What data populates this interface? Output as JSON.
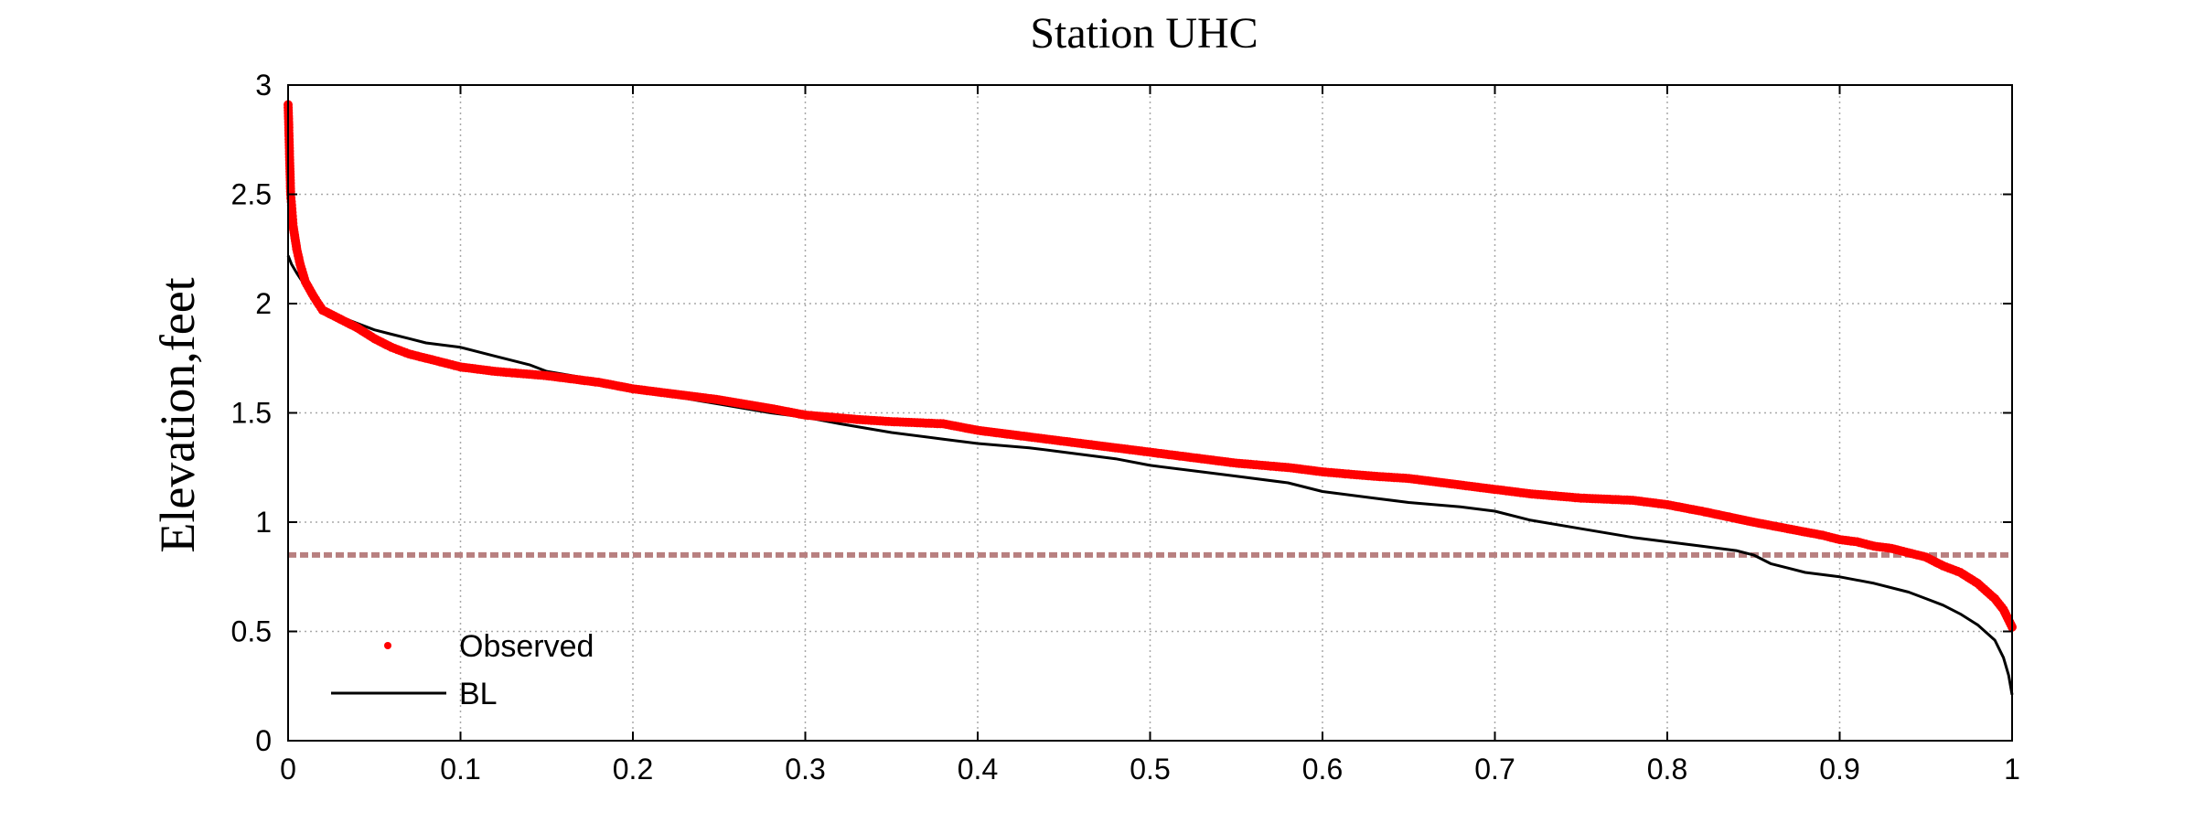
{
  "chart_data": {
    "type": "line",
    "title": "Station UHC",
    "xlabel": "",
    "ylabel": "Elevation,feet",
    "xlim": [
      0,
      1
    ],
    "ylim": [
      0,
      3
    ],
    "xticks": [
      "0",
      "0.1",
      "0.2",
      "0.3",
      "0.4",
      "0.5",
      "0.6",
      "0.7",
      "0.8",
      "0.9",
      "1"
    ],
    "yticks": [
      "0",
      "0.5",
      "1",
      "1.5",
      "2",
      "2.5",
      "3"
    ],
    "grid": true,
    "legend_position": "bottom-left",
    "reference_line": {
      "y": 0.85,
      "color": "#b88080",
      "style": "dashed"
    },
    "series": [
      {
        "name": "Observed",
        "style": "points",
        "color": "#ff0000",
        "x": [
          0.0,
          0.0005,
          0.001,
          0.0015,
          0.002,
          0.0025,
          0.003,
          0.004,
          0.005,
          0.007,
          0.01,
          0.015,
          0.02,
          0.03,
          0.04,
          0.05,
          0.06,
          0.07,
          0.08,
          0.09,
          0.1,
          0.12,
          0.15,
          0.18,
          0.2,
          0.22,
          0.25,
          0.28,
          0.3,
          0.33,
          0.35,
          0.38,
          0.4,
          0.43,
          0.45,
          0.48,
          0.5,
          0.53,
          0.55,
          0.58,
          0.6,
          0.63,
          0.65,
          0.68,
          0.7,
          0.72,
          0.75,
          0.78,
          0.8,
          0.82,
          0.85,
          0.87,
          0.89,
          0.9,
          0.91,
          0.92,
          0.93,
          0.94,
          0.95,
          0.96,
          0.97,
          0.98,
          0.99,
          0.995,
          1.0
        ],
        "y": [
          2.91,
          2.78,
          2.63,
          2.5,
          2.45,
          2.4,
          2.35,
          2.3,
          2.25,
          2.18,
          2.1,
          2.03,
          1.97,
          1.93,
          1.89,
          1.84,
          1.8,
          1.77,
          1.75,
          1.73,
          1.71,
          1.69,
          1.67,
          1.64,
          1.61,
          1.59,
          1.56,
          1.52,
          1.49,
          1.47,
          1.46,
          1.45,
          1.42,
          1.39,
          1.37,
          1.34,
          1.32,
          1.29,
          1.27,
          1.25,
          1.23,
          1.21,
          1.2,
          1.17,
          1.15,
          1.13,
          1.11,
          1.1,
          1.08,
          1.05,
          1.0,
          0.97,
          0.94,
          0.92,
          0.91,
          0.89,
          0.88,
          0.86,
          0.84,
          0.8,
          0.77,
          0.72,
          0.65,
          0.6,
          0.52
        ]
      },
      {
        "name": "BL",
        "style": "line",
        "color": "#000000",
        "x": [
          0.0,
          0.002,
          0.005,
          0.01,
          0.015,
          0.02,
          0.03,
          0.04,
          0.05,
          0.06,
          0.07,
          0.08,
          0.09,
          0.1,
          0.12,
          0.14,
          0.15,
          0.18,
          0.2,
          0.22,
          0.25,
          0.28,
          0.3,
          0.32,
          0.35,
          0.38,
          0.4,
          0.43,
          0.45,
          0.48,
          0.5,
          0.53,
          0.55,
          0.58,
          0.6,
          0.63,
          0.65,
          0.68,
          0.7,
          0.72,
          0.75,
          0.78,
          0.8,
          0.82,
          0.84,
          0.85,
          0.86,
          0.87,
          0.88,
          0.9,
          0.92,
          0.94,
          0.95,
          0.96,
          0.97,
          0.98,
          0.99,
          0.995,
          0.998,
          1.0
        ],
        "y": [
          2.22,
          2.18,
          2.14,
          2.08,
          2.01,
          1.97,
          1.94,
          1.91,
          1.88,
          1.86,
          1.84,
          1.82,
          1.81,
          1.8,
          1.76,
          1.72,
          1.69,
          1.65,
          1.61,
          1.58,
          1.54,
          1.5,
          1.48,
          1.45,
          1.41,
          1.38,
          1.36,
          1.34,
          1.32,
          1.29,
          1.26,
          1.23,
          1.21,
          1.18,
          1.14,
          1.11,
          1.09,
          1.07,
          1.05,
          1.01,
          0.97,
          0.93,
          0.91,
          0.89,
          0.87,
          0.85,
          0.81,
          0.79,
          0.77,
          0.75,
          0.72,
          0.68,
          0.65,
          0.62,
          0.58,
          0.53,
          0.46,
          0.38,
          0.3,
          0.21
        ]
      }
    ]
  }
}
